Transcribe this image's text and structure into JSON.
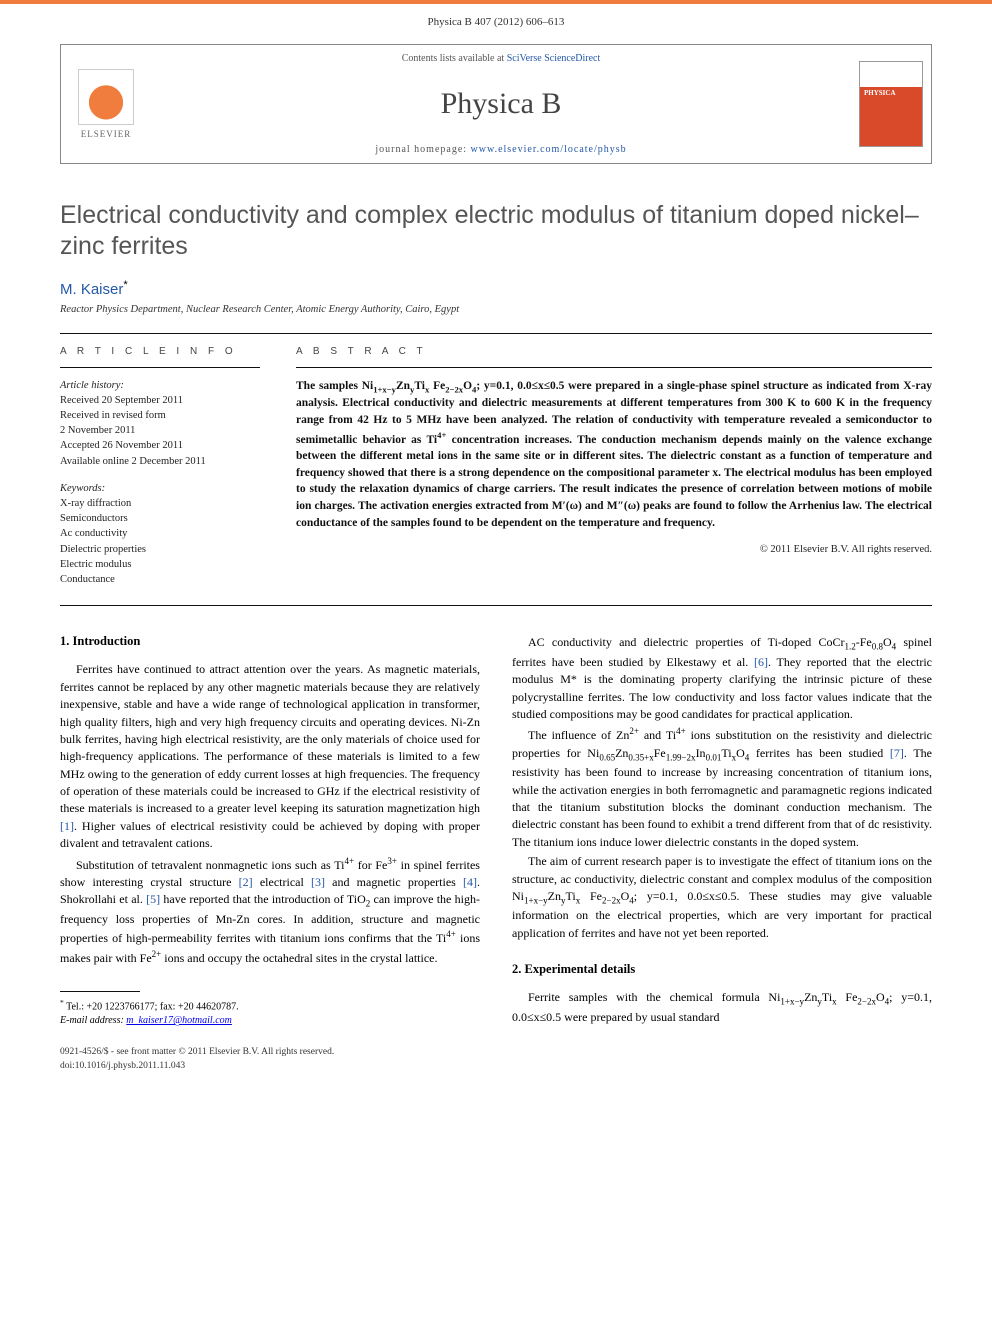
{
  "top_bar_color": "#f07c3e",
  "journal_ref": "Physica B 407 (2012) 606–613",
  "header": {
    "contents_prefix": "Contents lists available at ",
    "contents_link": "SciVerse ScienceDirect",
    "journal_name": "Physica B",
    "homepage_prefix": "journal homepage: ",
    "homepage_url": "www.elsevier.com/locate/physb",
    "elsevier_label": "ELSEVIER"
  },
  "title": "Electrical conductivity and complex electric modulus of titanium doped nickel–zinc ferrites",
  "author": {
    "name": "M. Kaiser",
    "marker": "*"
  },
  "affiliation": "Reactor Physics Department, Nuclear Research Center, Atomic Energy Authority, Cairo, Egypt",
  "article_info_label": "A R T I C L E   I N F O",
  "abstract_label": "A B S T R A C T",
  "history": {
    "header": "Article history:",
    "received": "Received 20 September 2011",
    "revised": "Received in revised form",
    "revised_date": "2 November 2011",
    "accepted": "Accepted 26 November 2011",
    "online": "Available online 2 December 2011"
  },
  "keywords": {
    "header": "Keywords:",
    "items": [
      "X-ray diffraction",
      "Semiconductors",
      "Ac conductivity",
      "Dielectric properties",
      "Electric modulus",
      "Conductance"
    ]
  },
  "abstract_html": "The samples Ni<sub>1+x−y</sub>Zn<sub>y</sub>Ti<sub>x</sub> Fe<sub>2−2x</sub>O<sub>4</sub>; y=0.1, 0.0≤x≤0.5 were prepared in a single-phase spinel structure as indicated from X-ray analysis. Electrical conductivity and dielectric measurements at different temperatures from 300 K to 600 K in the frequency range from 42 Hz to 5 MHz have been analyzed. The relation of conductivity with temperature revealed a semiconductor to semimetallic behavior as Ti<sup>4+</sup> concentration increases. The conduction mechanism depends mainly on the valence exchange between the different metal ions in the same site or in different sites. The dielectric constant as a function of temperature and frequency showed that there is a strong dependence on the compositional parameter x. The electrical modulus has been employed to study the relaxation dynamics of charge carriers. The result indicates the presence of correlation between motions of mobile ion charges. The activation energies extracted from M′(ω) and M″(ω) peaks are found to follow the Arrhenius law. The electrical conductance of the samples found to be dependent on the temperature and frequency.",
  "copyright": "© 2011 Elsevier B.V. All rights reserved.",
  "sections": {
    "intro_head": "1.  Introduction",
    "intro_p1": "Ferrites have continued to attract attention over the years. As magnetic materials, ferrites cannot be replaced by any other magnetic materials because they are relatively inexpensive, stable and have a wide range of technological application in transformer, high quality filters, high and very high frequency circuits and operating devices. Ni-Zn bulk ferrites, having high electrical resistivity, are the only materials of choice used for high-frequency applications. The performance of these materials is limited to a few MHz owing to the generation of eddy current losses at high frequencies. The frequency of operation of these materials could be increased to GHz if the electrical resistivity of these materials is increased to a greater level keeping its saturation magnetization high ",
    "intro_p1_ref1": "[1]",
    "intro_p1_tail": ". Higher values of electrical resistivity could be achieved by doping with proper divalent and tetravalent cations.",
    "intro_p2_a": "Substitution of tetravalent nonmagnetic ions such as Ti",
    "intro_p2_b": " for Fe",
    "intro_p2_c": " in spinel ferrites show interesting crystal structure ",
    "intro_p2_ref2": "[2]",
    "intro_p2_d": " electrical ",
    "intro_p2_ref3": "[3]",
    "intro_p2_e": " and magnetic properties ",
    "intro_p2_ref4": "[4]",
    "intro_p2_f": ". Shokrollahi et al. ",
    "intro_p2_ref5": "[5]",
    "intro_p2_g": " have reported that the introduction of TiO",
    "intro_p2_h": " can improve the high-frequency loss properties of Mn-Zn cores. In addition, structure and magnetic properties of high-permeability ferrites with titanium ions confirms that the Ti",
    "intro_p2_i": " ions makes pair with Fe",
    "intro_p2_j": " ions and occupy the octahedral sites in the crystal lattice.",
    "col2_p1_a": "AC conductivity and dielectric properties of Ti-doped CoCr",
    "col2_p1_b": "Fe",
    "col2_p1_c": "O",
    "col2_p1_d": " spinel ferrites have been studied by Elkestawy et al. ",
    "col2_p1_ref6": "[6]",
    "col2_p1_e": ". They reported that the electric modulus M* is the dominating property clarifying the intrinsic picture of these polycrystalline ferrites. The low conductivity and loss factor values indicate that the studied compositions may be good candidates for practical application.",
    "col2_p2_a": "The influence of Zn",
    "col2_p2_b": " and Ti",
    "col2_p2_c": " ions substitution on the resistivity and dielectric properties for Ni",
    "col2_p2_d": "Zn",
    "col2_p2_e": "Fe",
    "col2_p2_f": "In",
    "col2_p2_g": "Ti",
    "col2_p2_h": "O",
    "col2_p2_i": " ferrites has been studied ",
    "col2_p2_ref7": "[7]",
    "col2_p2_j": ". The resistivity has been found to increase by increasing concentration of titanium ions, while the activation energies in both ferromagnetic and paramagnetic regions indicated that the titanium substitution blocks the dominant conduction mechanism. The dielectric constant has been found to exhibit a trend different from that of dc resistivity. The titanium ions induce lower dielectric constants in the doped system.",
    "col2_p3_a": "The aim of current research paper is to investigate the effect of titanium ions on the structure, ac conductivity, dielectric constant and complex modulus of the composition Ni",
    "col2_p3_b": "Zn",
    "col2_p3_c": "Ti",
    "col2_p3_d": " Fe",
    "col2_p3_e": "O",
    "col2_p3_f": "; y=0.1, 0.0≤x≤0.5. These studies may give valuable information on the electrical properties, which are very important for practical application of ferrites and have not yet been reported.",
    "exp_head": "2.  Experimental details",
    "exp_p1_a": "Ferrite samples with the chemical formula Ni",
    "exp_p1_b": "Zn",
    "exp_p1_c": "Ti",
    "exp_p1_d": " Fe",
    "exp_p1_e": "O",
    "exp_p1_f": "; y=0.1, 0.0≤x≤0.5 were prepared by usual standard"
  },
  "footnote": {
    "marker": "*",
    "tel": "Tel.: +20 1223766177; fax: +20 44620787.",
    "email_label": "E-mail address:",
    "email": "m_kaiser17@hotmail.com"
  },
  "bottom": {
    "line1": "0921-4526/$ - see front matter © 2011 Elsevier B.V. All rights reserved.",
    "line2": "doi:10.1016/j.physb.2011.11.043"
  }
}
